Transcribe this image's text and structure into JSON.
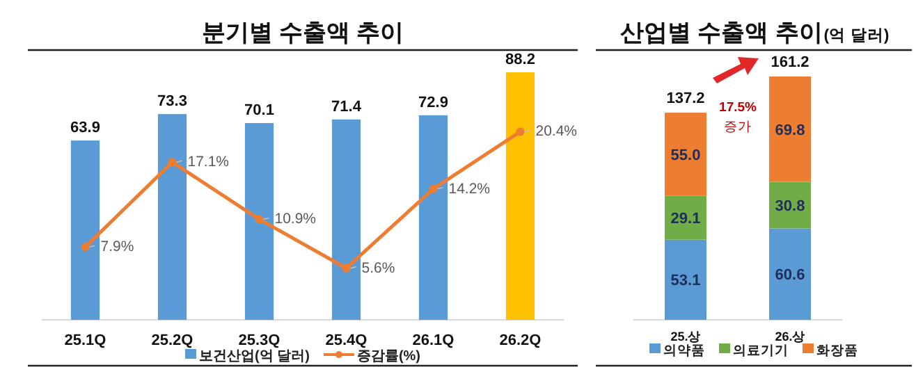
{
  "chart_data": [
    {
      "type": "bar",
      "title": "분기별 수출액 추이",
      "categories": [
        "25.1Q",
        "25.2Q",
        "25.3Q",
        "25.4Q",
        "26.1Q",
        "26.2Q"
      ],
      "marker": "circle",
      "legend": "bottom",
      "series": [
        {
          "name": "보건산업(억 달러)",
          "type": "bar",
          "colors": [
            "#5b9bd5",
            "#5b9bd5",
            "#5b9bd5",
            "#5b9bd5",
            "#5b9bd5",
            "#ffc000"
          ],
          "values": [
            63.9,
            73.3,
            70.1,
            71.4,
            72.9,
            88.2
          ],
          "value_labels": [
            "63.9",
            "73.3",
            "70.1",
            "71.4",
            "72.9",
            "88.2"
          ]
        },
        {
          "name": "증감률(%)",
          "type": "line",
          "axis": "y2",
          "color": "#ed7d31",
          "values": [
            7.9,
            17.1,
            10.9,
            5.6,
            14.2,
            20.4
          ],
          "value_labels": [
            "7.9%",
            "17.1%",
            "10.9%",
            "5.6%",
            "14.2%",
            "20.4%"
          ]
        }
      ]
    },
    {
      "type": "bar",
      "title": "산업별 수출액 추이",
      "subtitle": "(억 달러)",
      "categories": [
        "25.상",
        "26.상"
      ],
      "stacked": true,
      "legend": "bottom",
      "totals": [
        "137.2",
        "161.2"
      ],
      "annotations": [
        "17.5%",
        "증가"
      ],
      "series": [
        {
          "name": "의약품",
          "color": "#5b9bd5",
          "values": [
            53.1,
            60.6
          ],
          "value_labels": [
            "53.1",
            "60.6"
          ]
        },
        {
          "name": "의료기기",
          "color": "#70ad47",
          "values": [
            29.1,
            30.8
          ],
          "value_labels": [
            "29.1",
            "30.8"
          ]
        },
        {
          "name": "화장품",
          "color": "#ed7d31",
          "values": [
            55.0,
            69.8
          ],
          "value_labels": [
            "55.0",
            "69.8"
          ]
        }
      ]
    }
  ]
}
